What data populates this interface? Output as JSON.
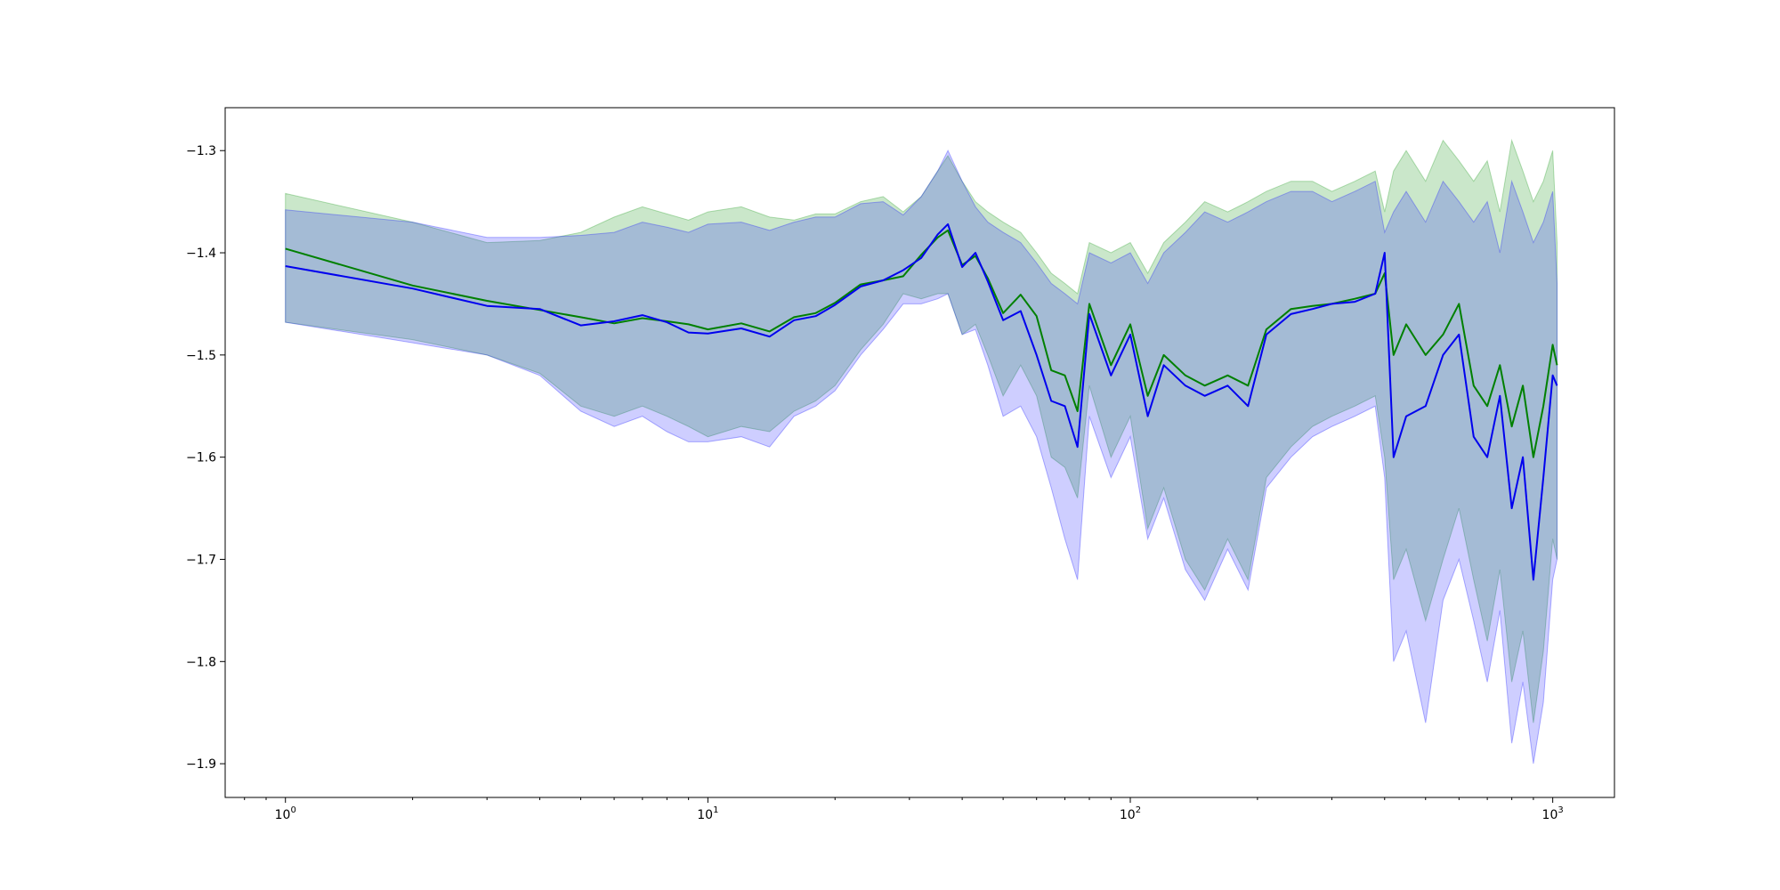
{
  "chart_data": {
    "type": "line",
    "title": "",
    "xlabel": "",
    "ylabel": "",
    "xscale": "log",
    "xlim": [
      0.72,
      1400
    ],
    "ylim": [
      -1.933,
      -1.258
    ],
    "grid": false,
    "legend": "none",
    "x_ticks": [
      {
        "base": "10",
        "exp": "0",
        "value": 1
      },
      {
        "base": "10",
        "exp": "1",
        "value": 10
      },
      {
        "base": "10",
        "exp": "2",
        "value": 100
      },
      {
        "base": "10",
        "exp": "3",
        "value": 1000
      }
    ],
    "y_ticks": [
      {
        "label": "−1.3",
        "value": -1.3
      },
      {
        "label": "−1.4",
        "value": -1.4
      },
      {
        "label": "−1.5",
        "value": -1.5
      },
      {
        "label": "−1.6",
        "value": -1.6
      },
      {
        "label": "−1.7",
        "value": -1.7
      },
      {
        "label": "−1.8",
        "value": -1.8
      },
      {
        "label": "−1.9",
        "value": -1.9
      }
    ],
    "series": [
      {
        "color": "#008000",
        "band_color": "#2ca02c",
        "band_opacity": 0.25,
        "x": [
          1,
          2,
          3,
          4,
          5,
          6,
          7,
          8,
          9,
          10,
          12,
          14,
          16,
          18,
          20,
          23,
          26,
          29,
          32,
          35,
          37,
          40,
          43,
          46,
          50,
          55,
          60,
          65,
          70,
          75,
          80,
          90,
          100,
          110,
          120,
          135,
          150,
          170,
          190,
          210,
          240,
          270,
          300,
          340,
          380,
          400,
          420,
          450,
          500,
          550,
          600,
          650,
          700,
          750,
          800,
          850,
          900,
          950,
          1000,
          1024
        ],
        "y": [
          -1.396,
          -1.432,
          -1.447,
          -1.456,
          -1.463,
          -1.469,
          -1.464,
          -1.467,
          -1.47,
          -1.475,
          -1.469,
          -1.477,
          -1.463,
          -1.459,
          -1.449,
          -1.431,
          -1.427,
          -1.423,
          -1.402,
          -1.385,
          -1.378,
          -1.412,
          -1.403,
          -1.425,
          -1.459,
          -1.441,
          -1.462,
          -1.515,
          -1.52,
          -1.555,
          -1.45,
          -1.51,
          -1.47,
          -1.54,
          -1.5,
          -1.52,
          -1.53,
          -1.52,
          -1.53,
          -1.475,
          -1.455,
          -1.452,
          -1.45,
          -1.445,
          -1.44,
          -1.42,
          -1.5,
          -1.47,
          -1.5,
          -1.48,
          -1.45,
          -1.53,
          -1.55,
          -1.51,
          -1.57,
          -1.53,
          -1.6,
          -1.55,
          -1.49,
          -1.51
        ],
        "lower": [
          -1.468,
          -1.485,
          -1.5,
          -1.518,
          -1.55,
          -1.56,
          -1.55,
          -1.56,
          -1.57,
          -1.58,
          -1.57,
          -1.575,
          -1.555,
          -1.545,
          -1.53,
          -1.495,
          -1.47,
          -1.44,
          -1.445,
          -1.44,
          -1.44,
          -1.48,
          -1.47,
          -1.5,
          -1.54,
          -1.51,
          -1.54,
          -1.6,
          -1.61,
          -1.64,
          -1.53,
          -1.6,
          -1.56,
          -1.67,
          -1.63,
          -1.7,
          -1.73,
          -1.68,
          -1.72,
          -1.62,
          -1.59,
          -1.57,
          -1.56,
          -1.55,
          -1.54,
          -1.6,
          -1.72,
          -1.69,
          -1.76,
          -1.7,
          -1.65,
          -1.72,
          -1.78,
          -1.71,
          -1.82,
          -1.77,
          -1.86,
          -1.79,
          -1.68,
          -1.7
        ],
        "upper": [
          -1.342,
          -1.37,
          -1.39,
          -1.388,
          -1.38,
          -1.365,
          -1.355,
          -1.362,
          -1.368,
          -1.36,
          -1.355,
          -1.365,
          -1.368,
          -1.362,
          -1.362,
          -1.35,
          -1.345,
          -1.36,
          -1.345,
          -1.32,
          -1.305,
          -1.33,
          -1.35,
          -1.36,
          -1.37,
          -1.38,
          -1.4,
          -1.42,
          -1.43,
          -1.44,
          -1.39,
          -1.4,
          -1.39,
          -1.42,
          -1.39,
          -1.37,
          -1.35,
          -1.36,
          -1.35,
          -1.34,
          -1.33,
          -1.33,
          -1.34,
          -1.33,
          -1.32,
          -1.36,
          -1.32,
          -1.3,
          -1.33,
          -1.29,
          -1.31,
          -1.33,
          -1.31,
          -1.36,
          -1.29,
          -1.32,
          -1.35,
          -1.33,
          -1.3,
          -1.39
        ]
      },
      {
        "color": "#0000ee",
        "band_color": "#1f1fff",
        "band_opacity": 0.22,
        "x": [
          1,
          2,
          3,
          4,
          5,
          6,
          7,
          8,
          9,
          10,
          12,
          14,
          16,
          18,
          20,
          23,
          26,
          29,
          32,
          35,
          37,
          40,
          43,
          46,
          50,
          55,
          60,
          65,
          70,
          75,
          80,
          90,
          100,
          110,
          120,
          135,
          150,
          170,
          190,
          210,
          240,
          270,
          300,
          340,
          380,
          400,
          420,
          450,
          500,
          550,
          600,
          650,
          700,
          750,
          800,
          850,
          900,
          950,
          1000,
          1024
        ],
        "y": [
          -1.413,
          -1.435,
          -1.452,
          -1.455,
          -1.471,
          -1.467,
          -1.461,
          -1.468,
          -1.478,
          -1.479,
          -1.474,
          -1.482,
          -1.466,
          -1.462,
          -1.451,
          -1.433,
          -1.427,
          -1.417,
          -1.405,
          -1.382,
          -1.372,
          -1.414,
          -1.4,
          -1.428,
          -1.466,
          -1.457,
          -1.5,
          -1.545,
          -1.55,
          -1.59,
          -1.46,
          -1.52,
          -1.48,
          -1.56,
          -1.51,
          -1.53,
          -1.54,
          -1.53,
          -1.55,
          -1.48,
          -1.46,
          -1.455,
          -1.45,
          -1.448,
          -1.44,
          -1.4,
          -1.6,
          -1.56,
          -1.55,
          -1.5,
          -1.48,
          -1.58,
          -1.6,
          -1.54,
          -1.65,
          -1.6,
          -1.72,
          -1.62,
          -1.52,
          -1.53
        ],
        "lower": [
          -1.468,
          -1.488,
          -1.5,
          -1.52,
          -1.555,
          -1.57,
          -1.56,
          -1.575,
          -1.585,
          -1.585,
          -1.58,
          -1.59,
          -1.56,
          -1.55,
          -1.535,
          -1.5,
          -1.475,
          -1.45,
          -1.45,
          -1.445,
          -1.44,
          -1.48,
          -1.475,
          -1.51,
          -1.56,
          -1.55,
          -1.58,
          -1.63,
          -1.68,
          -1.72,
          -1.56,
          -1.62,
          -1.58,
          -1.68,
          -1.64,
          -1.71,
          -1.74,
          -1.69,
          -1.73,
          -1.63,
          -1.6,
          -1.58,
          -1.57,
          -1.56,
          -1.55,
          -1.62,
          -1.8,
          -1.77,
          -1.86,
          -1.74,
          -1.7,
          -1.76,
          -1.82,
          -1.75,
          -1.88,
          -1.82,
          -1.9,
          -1.84,
          -1.72,
          -1.7
        ],
        "upper": [
          -1.358,
          -1.37,
          -1.385,
          -1.385,
          -1.383,
          -1.38,
          -1.37,
          -1.375,
          -1.38,
          -1.372,
          -1.37,
          -1.378,
          -1.37,
          -1.365,
          -1.365,
          -1.352,
          -1.35,
          -1.363,
          -1.345,
          -1.32,
          -1.3,
          -1.33,
          -1.355,
          -1.37,
          -1.38,
          -1.39,
          -1.41,
          -1.43,
          -1.44,
          -1.45,
          -1.4,
          -1.41,
          -1.4,
          -1.43,
          -1.4,
          -1.38,
          -1.36,
          -1.37,
          -1.36,
          -1.35,
          -1.34,
          -1.34,
          -1.35,
          -1.34,
          -1.33,
          -1.38,
          -1.36,
          -1.34,
          -1.37,
          -1.33,
          -1.35,
          -1.37,
          -1.35,
          -1.4,
          -1.33,
          -1.36,
          -1.39,
          -1.37,
          -1.34,
          -1.43
        ]
      }
    ]
  }
}
